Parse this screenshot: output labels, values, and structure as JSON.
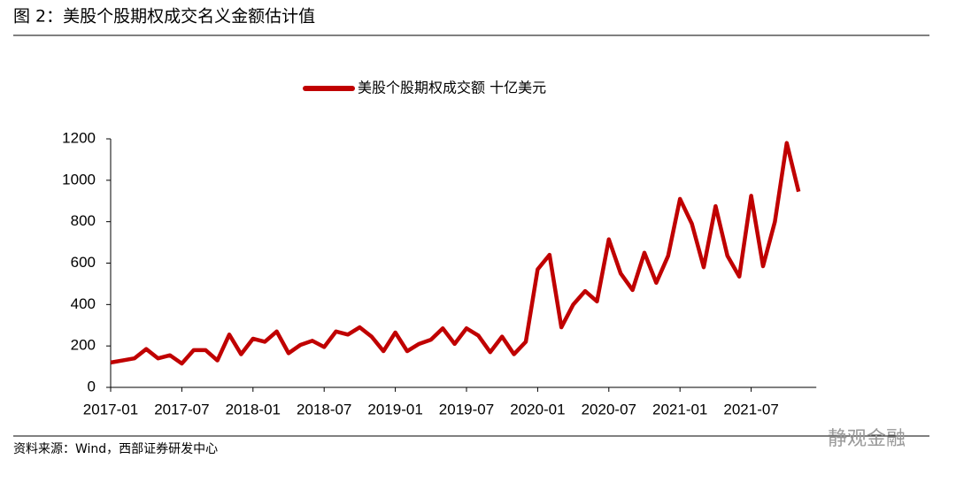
{
  "chart_data": {
    "type": "line",
    "title": "图 2：美股个股期权成交名义金额估计值",
    "source": "资料来源：Wind，西部证券研发中心",
    "watermark": "静观金融",
    "categories": [
      "2017-01",
      null,
      null,
      null,
      null,
      null,
      "2017-07",
      null,
      null,
      null,
      null,
      null,
      "2018-01",
      null,
      null,
      null,
      null,
      null,
      "2018-07",
      null,
      null,
      null,
      null,
      null,
      "2019-01",
      null,
      null,
      null,
      null,
      null,
      "2019-07",
      null,
      null,
      null,
      null,
      null,
      "2020-01",
      null,
      null,
      null,
      null,
      null,
      "2020-07",
      null,
      null,
      null,
      null,
      null,
      "2021-01",
      null,
      null,
      null,
      null,
      null,
      "2021-07",
      null,
      null,
      null,
      null
    ],
    "series": [
      {
        "name": "美股个股期权成交额 十亿美元",
        "color": "#c00000",
        "values": [
          120,
          130,
          140,
          185,
          140,
          155,
          115,
          180,
          180,
          130,
          255,
          160,
          235,
          220,
          270,
          165,
          205,
          225,
          195,
          270,
          255,
          290,
          245,
          175,
          265,
          175,
          210,
          230,
          285,
          210,
          285,
          250,
          170,
          245,
          160,
          220,
          570,
          640,
          290,
          400,
          465,
          415,
          715,
          550,
          470,
          650,
          505,
          635,
          910,
          790,
          580,
          875,
          635,
          535,
          925,
          585,
          800,
          1180,
          945
        ]
      }
    ],
    "ylim": [
      0,
      1200
    ],
    "yticks": [
      0,
      200,
      400,
      600,
      800,
      1000,
      1200
    ],
    "legend": "top"
  }
}
